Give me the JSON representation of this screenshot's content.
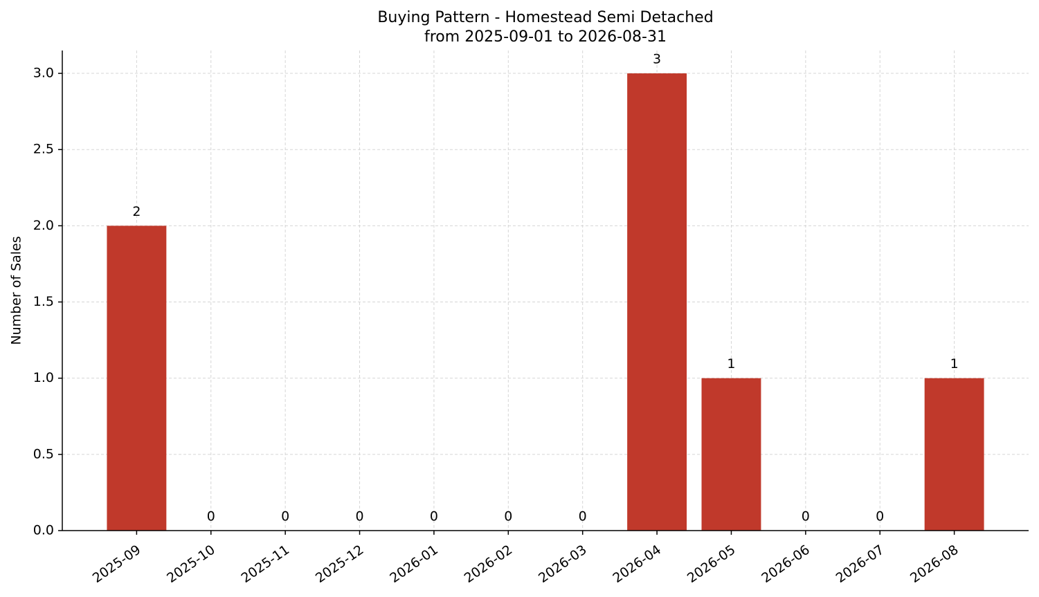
{
  "chart_data": {
    "type": "bar",
    "title": "Buying Pattern - Homestead Semi Detached",
    "subtitle": "from 2025-09-01 to 2026-08-31",
    "y_label": "Number of Sales",
    "categories": [
      "2025-09",
      "2025-10",
      "2025-11",
      "2025-12",
      "2026-01",
      "2026-02",
      "2026-03",
      "2026-04",
      "2026-05",
      "2026-06",
      "2026-07",
      "2026-08"
    ],
    "values": [
      2,
      0,
      0,
      0,
      0,
      0,
      0,
      3,
      1,
      0,
      0,
      1
    ],
    "color": "#c0392b",
    "ylim": [
      0,
      3.15
    ],
    "yticks": [
      {
        "value": 0,
        "label": "0.0"
      },
      {
        "value": 0.5,
        "label": "0.5"
      },
      {
        "value": 1,
        "label": "1.0"
      },
      {
        "value": 1.5,
        "label": "1.5"
      },
      {
        "value": 2,
        "label": "2.0"
      },
      {
        "value": 2.5,
        "label": "2.5"
      },
      {
        "value": 3,
        "label": "3.0"
      }
    ],
    "grid": true
  }
}
